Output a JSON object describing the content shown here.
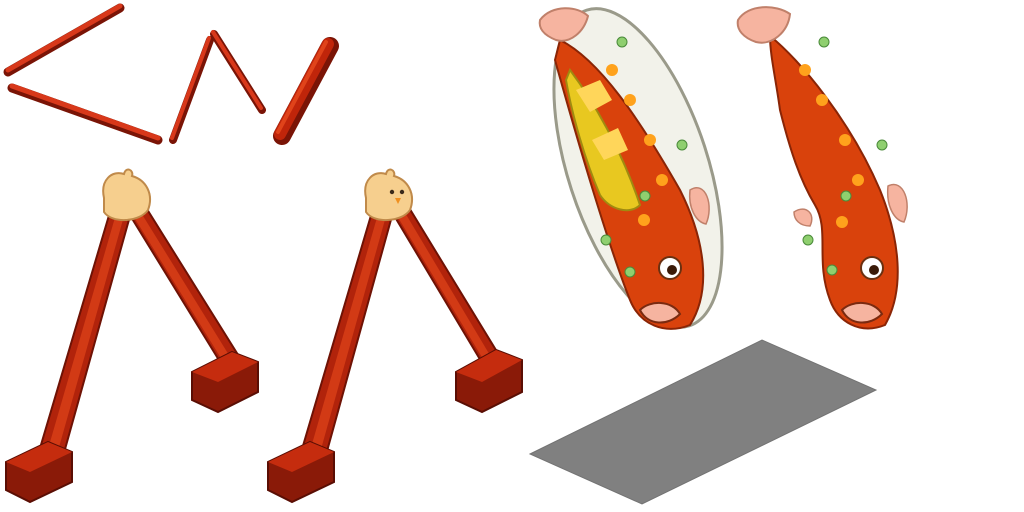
{
  "sheet": {
    "background": "#ffffff",
    "sprites": [
      {
        "icon": "red-pole-segment-icon"
      },
      {
        "icon": "red-pole-angled-pieces-icon"
      },
      {
        "icon": "red-pole-cap-icon"
      },
      {
        "icon": "chick-topped-a-frame-stand-icon"
      },
      {
        "icon": "chick-topped-a-frame-stand-alt-icon"
      },
      {
        "icon": "carp-streamer-with-board-icon"
      },
      {
        "icon": "carp-streamer-icon"
      },
      {
        "icon": "shadow-tile-icon"
      }
    ]
  },
  "colors": {
    "pole_red": "#c0250a",
    "pole_dark": "#7a1406",
    "pole_light": "#e0431a",
    "chick": "#f6cf8e",
    "fish_orange": "#e2650b",
    "fish_spot": "#ffa21c",
    "fish_bead": "#8fcf6f",
    "fin_pink": "#f6b4a0",
    "board_yellow": "#e8c820",
    "shadow_gray": "#808080"
  }
}
